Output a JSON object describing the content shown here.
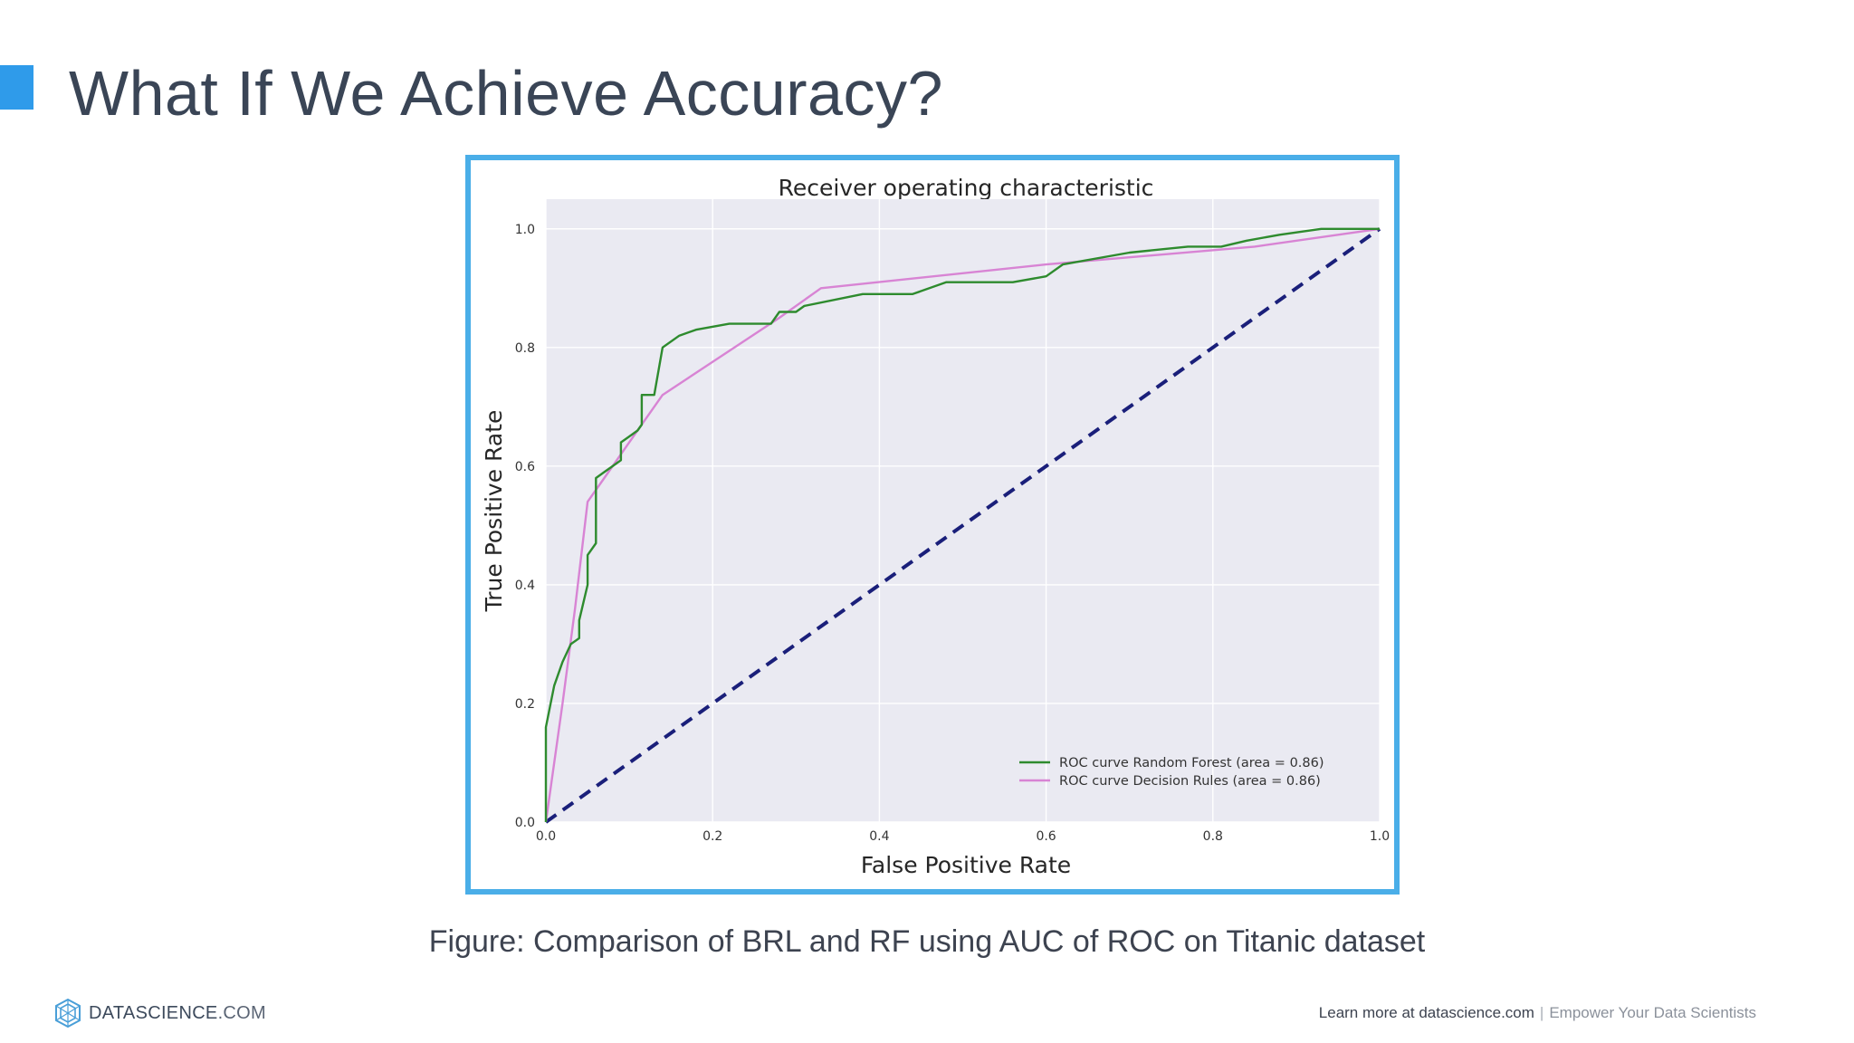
{
  "slide": {
    "title": "What If We Achieve Accuracy?",
    "caption": "Figure: Comparison of BRL and RF using AUC of ROC on Titanic dataset",
    "accent_color": "#2f9bea",
    "frame_color": "#4aaee8"
  },
  "footer": {
    "brand_bold": "DATASCIENCE",
    "brand_thin": ".COM",
    "learn_more": "Learn more at datascience.com",
    "separator": "|",
    "tagline": "Empower Your Data Scientists"
  },
  "chart_data": {
    "type": "line",
    "title": "Receiver operating characteristic",
    "xlabel": "False Positive Rate",
    "ylabel": "True Positive Rate",
    "xlim": [
      0,
      1
    ],
    "ylim": [
      0,
      1.05
    ],
    "xticks": [
      "0.0",
      "0.2",
      "0.4",
      "0.6",
      "0.8",
      "1.0"
    ],
    "yticks": [
      "0.0",
      "0.2",
      "0.4",
      "0.6",
      "0.8",
      "1.0"
    ],
    "grid": true,
    "legend_position": "lower-right",
    "series": [
      {
        "name": "ROC curve Random Forest (area = 0.86)",
        "color": "#2e8b2e",
        "dash": false,
        "points": [
          [
            0.0,
            0.0
          ],
          [
            0.0,
            0.16
          ],
          [
            0.01,
            0.23
          ],
          [
            0.02,
            0.27
          ],
          [
            0.03,
            0.3
          ],
          [
            0.04,
            0.31
          ],
          [
            0.04,
            0.34
          ],
          [
            0.05,
            0.4
          ],
          [
            0.05,
            0.45
          ],
          [
            0.06,
            0.47
          ],
          [
            0.06,
            0.48
          ],
          [
            0.06,
            0.58
          ],
          [
            0.07,
            0.59
          ],
          [
            0.08,
            0.6
          ],
          [
            0.09,
            0.61
          ],
          [
            0.09,
            0.64
          ],
          [
            0.1,
            0.65
          ],
          [
            0.11,
            0.66
          ],
          [
            0.115,
            0.67
          ],
          [
            0.115,
            0.72
          ],
          [
            0.13,
            0.72
          ],
          [
            0.14,
            0.8
          ],
          [
            0.16,
            0.82
          ],
          [
            0.18,
            0.83
          ],
          [
            0.22,
            0.84
          ],
          [
            0.27,
            0.84
          ],
          [
            0.28,
            0.86
          ],
          [
            0.3,
            0.86
          ],
          [
            0.31,
            0.87
          ],
          [
            0.38,
            0.89
          ],
          [
            0.44,
            0.89
          ],
          [
            0.48,
            0.91
          ],
          [
            0.56,
            0.91
          ],
          [
            0.6,
            0.92
          ],
          [
            0.62,
            0.94
          ],
          [
            0.7,
            0.96
          ],
          [
            0.77,
            0.97
          ],
          [
            0.81,
            0.97
          ],
          [
            0.84,
            0.98
          ],
          [
            0.88,
            0.99
          ],
          [
            0.93,
            1.0
          ],
          [
            1.0,
            1.0
          ]
        ]
      },
      {
        "name": "ROC curve Decision Rules (area = 0.86)",
        "color": "#d884d4",
        "dash": false,
        "points": [
          [
            0.0,
            0.0
          ],
          [
            0.02,
            0.2
          ],
          [
            0.035,
            0.36
          ],
          [
            0.05,
            0.54
          ],
          [
            0.07,
            0.58
          ],
          [
            0.1,
            0.64
          ],
          [
            0.14,
            0.72
          ],
          [
            0.28,
            0.85
          ],
          [
            0.33,
            0.9
          ],
          [
            0.6,
            0.94
          ],
          [
            0.85,
            0.97
          ],
          [
            1.0,
            1.0
          ]
        ]
      },
      {
        "name": "",
        "color": "#1a1f7a",
        "dash": true,
        "points": [
          [
            0.0,
            0.0
          ],
          [
            1.0,
            1.0
          ]
        ]
      }
    ]
  }
}
